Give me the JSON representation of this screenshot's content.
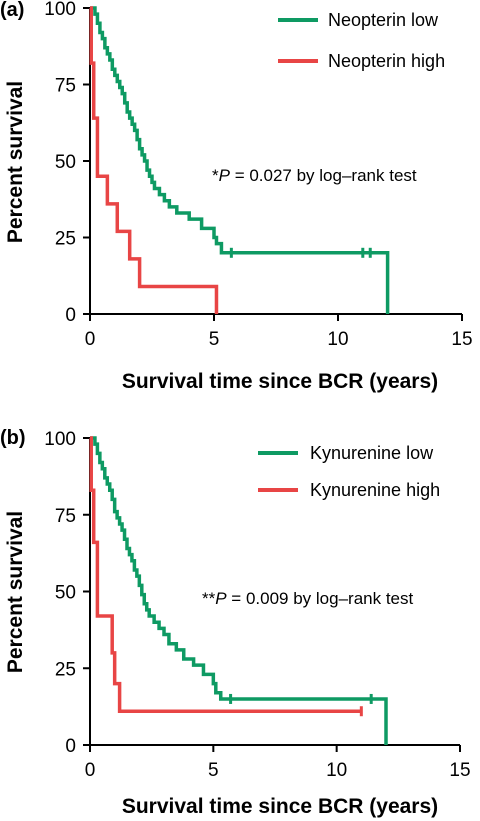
{
  "chart_data": [
    {
      "panel_label": "(a)",
      "type": "line",
      "step": true,
      "xlabel": "Survival time since BCR (years)",
      "ylabel": "Percent survival",
      "xlim": [
        0,
        15
      ],
      "ylim": [
        0,
        100
      ],
      "xticks": [
        "0",
        "5",
        "10",
        "15"
      ],
      "yticks": [
        "0",
        "25",
        "50",
        "75",
        "100"
      ],
      "legend_position": "top-right",
      "annotation": {
        "prefix": "*",
        "italic": "P",
        "rest": " = 0.027 by log–rank test"
      },
      "series": [
        {
          "name": "Neopterin low",
          "color": "#0e9a63",
          "points": [
            [
              0,
              100
            ],
            [
              0.2,
              98
            ],
            [
              0.3,
              95
            ],
            [
              0.4,
              92
            ],
            [
              0.5,
              90
            ],
            [
              0.6,
              87
            ],
            [
              0.7,
              85
            ],
            [
              0.8,
              83
            ],
            [
              0.9,
              80
            ],
            [
              1.0,
              78
            ],
            [
              1.1,
              76
            ],
            [
              1.2,
              74
            ],
            [
              1.3,
              72
            ],
            [
              1.4,
              69
            ],
            [
              1.5,
              66
            ],
            [
              1.6,
              64
            ],
            [
              1.7,
              62
            ],
            [
              1.8,
              60
            ],
            [
              1.9,
              57
            ],
            [
              2.0,
              54
            ],
            [
              2.1,
              52
            ],
            [
              2.2,
              50
            ],
            [
              2.3,
              47
            ],
            [
              2.4,
              45
            ],
            [
              2.5,
              43
            ],
            [
              2.6,
              41
            ],
            [
              2.8,
              39
            ],
            [
              3.0,
              37
            ],
            [
              3.2,
              35
            ],
            [
              3.5,
              33
            ],
            [
              4.0,
              31
            ],
            [
              4.5,
              28
            ],
            [
              5.0,
              25
            ],
            [
              5.1,
              23
            ],
            [
              5.3,
              20
            ],
            [
              12.0,
              20
            ],
            [
              12.0,
              0
            ]
          ],
          "censored": [
            [
              5.7,
              20
            ],
            [
              11.0,
              20
            ],
            [
              11.3,
              20
            ]
          ]
        },
        {
          "name": "Neopterin high",
          "color": "#e84545",
          "points": [
            [
              0,
              100
            ],
            [
              0.05,
              82
            ],
            [
              0.15,
              64
            ],
            [
              0.3,
              45
            ],
            [
              0.7,
              36
            ],
            [
              1.1,
              27
            ],
            [
              1.6,
              18
            ],
            [
              2.0,
              9
            ],
            [
              5.1,
              9
            ],
            [
              5.1,
              0
            ]
          ],
          "censored": []
        }
      ]
    },
    {
      "panel_label": "(b)",
      "type": "line",
      "step": true,
      "xlabel": "Survival time since BCR (years)",
      "ylabel": "Percent survival",
      "xlim": [
        0,
        15
      ],
      "ylim": [
        0,
        100
      ],
      "xticks": [
        "0",
        "5",
        "10",
        "15"
      ],
      "yticks": [
        "0",
        "25",
        "50",
        "75",
        "100"
      ],
      "legend_position": "top-right",
      "annotation": {
        "prefix": "**",
        "italic": "P",
        "rest": " = 0.009 by log–rank test"
      },
      "series": [
        {
          "name": "Kynurenine low",
          "color": "#0e9a63",
          "points": [
            [
              0,
              100
            ],
            [
              0.2,
              98
            ],
            [
              0.3,
              95
            ],
            [
              0.4,
              92
            ],
            [
              0.5,
              90
            ],
            [
              0.6,
              87
            ],
            [
              0.7,
              85
            ],
            [
              0.8,
              83
            ],
            [
              0.9,
              80
            ],
            [
              1.0,
              76
            ],
            [
              1.1,
              74
            ],
            [
              1.2,
              72
            ],
            [
              1.3,
              70
            ],
            [
              1.4,
              67
            ],
            [
              1.5,
              64
            ],
            [
              1.6,
              62
            ],
            [
              1.7,
              60
            ],
            [
              1.8,
              57
            ],
            [
              1.9,
              55
            ],
            [
              2.0,
              52
            ],
            [
              2.1,
              49
            ],
            [
              2.2,
              46
            ],
            [
              2.3,
              44
            ],
            [
              2.4,
              42
            ],
            [
              2.6,
              40
            ],
            [
              2.8,
              38
            ],
            [
              3.0,
              36
            ],
            [
              3.2,
              33
            ],
            [
              3.5,
              31
            ],
            [
              3.8,
              28
            ],
            [
              4.2,
              26
            ],
            [
              4.6,
              23
            ],
            [
              5.0,
              20
            ],
            [
              5.1,
              17
            ],
            [
              5.3,
              15
            ],
            [
              12.0,
              15
            ],
            [
              12.0,
              0
            ]
          ],
          "censored": [
            [
              5.7,
              15
            ],
            [
              11.4,
              15
            ]
          ]
        },
        {
          "name": "Kynurenine high",
          "color": "#e84545",
          "points": [
            [
              0,
              100
            ],
            [
              0.05,
              83
            ],
            [
              0.15,
              66
            ],
            [
              0.3,
              42
            ],
            [
              0.9,
              30
            ],
            [
              1.0,
              20
            ],
            [
              1.2,
              11
            ],
            [
              11.0,
              11
            ]
          ],
          "censored": [
            [
              11.0,
              11
            ]
          ]
        }
      ]
    }
  ]
}
